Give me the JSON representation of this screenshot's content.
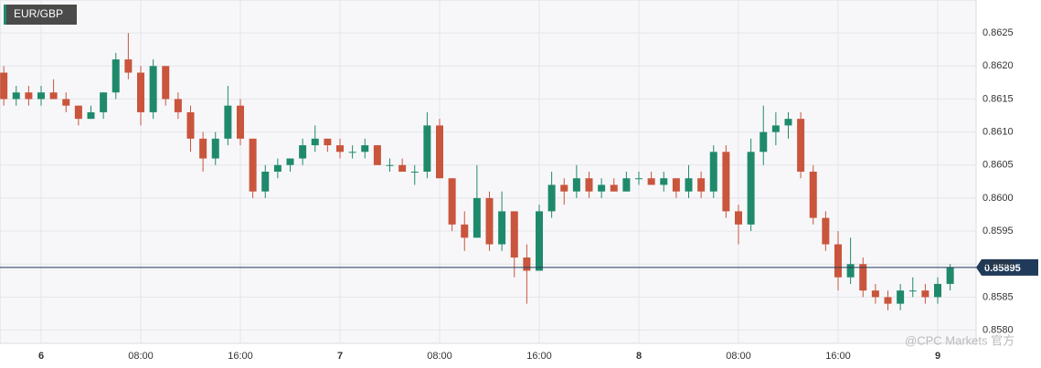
{
  "chart_data": {
    "type": "candlestick",
    "title": "EUR/GBP",
    "watermark": "@CPC Markets 官方",
    "categories": [
      null,
      null,
      null,
      "6",
      null,
      null,
      null,
      null,
      null,
      null,
      null,
      "08:00",
      null,
      null,
      null,
      null,
      null,
      null,
      null,
      "16:00",
      null,
      null,
      null,
      null,
      null,
      null,
      null,
      "7",
      null,
      null,
      null,
      null,
      null,
      null,
      null,
      "08:00",
      null,
      null,
      null,
      null,
      null,
      null,
      null,
      "16:00",
      null,
      null,
      null,
      null,
      null,
      null,
      null,
      "8",
      null,
      null,
      null,
      null,
      null,
      null,
      null,
      "08:00",
      null,
      null,
      null,
      null,
      null,
      null,
      null,
      "16:00",
      null,
      null,
      null,
      null,
      null,
      null,
      null,
      "9",
      null
    ],
    "open": [
      0.8619,
      0.8615,
      0.8616,
      0.8615,
      0.8616,
      0.8615,
      0.8614,
      0.8612,
      0.8613,
      0.8616,
      0.8621,
      0.8619,
      0.8613,
      0.862,
      0.8615,
      0.8613,
      0.8609,
      0.8606,
      0.8609,
      0.8614,
      0.8609,
      0.8601,
      0.8604,
      0.8605,
      0.8606,
      0.8608,
      0.8609,
      0.8608,
      0.8607,
      0.8607,
      0.8608,
      0.8605,
      0.8605,
      0.8604,
      0.8604,
      0.8611,
      0.8603,
      0.8596,
      0.8594,
      0.86,
      0.8593,
      0.8598,
      0.8591,
      0.8589,
      0.8598,
      0.8602,
      0.8601,
      0.8603,
      0.8601,
      0.8602,
      0.8601,
      0.8603,
      0.8603,
      0.8602,
      0.8603,
      0.8601,
      0.8603,
      0.8601,
      0.8607,
      0.8598,
      0.8596,
      0.8607,
      0.861,
      0.8611,
      0.8612,
      0.8604,
      0.8597,
      0.8593,
      0.8588,
      0.859,
      0.8586,
      0.8585,
      0.8584,
      0.8586,
      0.8586,
      0.8585,
      0.8587
    ],
    "high": [
      0.862,
      0.8617,
      0.8617,
      0.8617,
      0.8618,
      0.8616,
      0.8614,
      0.8614,
      0.8616,
      0.8622,
      0.8625,
      0.862,
      0.8621,
      0.862,
      0.8616,
      0.8614,
      0.861,
      0.861,
      0.8617,
      0.8615,
      0.8609,
      0.8605,
      0.8606,
      0.8606,
      0.8609,
      0.8611,
      0.8609,
      0.8609,
      0.8608,
      0.8609,
      0.8608,
      0.8606,
      0.8606,
      0.8605,
      0.8613,
      0.8612,
      0.8603,
      0.8598,
      0.8605,
      0.8601,
      0.8601,
      0.8598,
      0.8593,
      0.8599,
      0.8604,
      0.8603,
      0.8605,
      0.8604,
      0.8603,
      0.8603,
      0.8604,
      0.8604,
      0.8604,
      0.8604,
      0.8603,
      0.8605,
      0.8604,
      0.8608,
      0.8608,
      0.8599,
      0.8609,
      0.8614,
      0.8613,
      0.8613,
      0.8613,
      0.8605,
      0.8598,
      0.8595,
      0.8594,
      0.8591,
      0.8587,
      0.8586,
      0.8587,
      0.8588,
      0.8587,
      0.8588,
      0.859
    ],
    "low": [
      0.8614,
      0.8614,
      0.8614,
      0.8614,
      0.8615,
      0.8613,
      0.8611,
      0.8612,
      0.8612,
      0.8615,
      0.8618,
      0.8611,
      0.8612,
      0.8614,
      0.8612,
      0.8607,
      0.8604,
      0.8605,
      0.8608,
      0.8608,
      0.86,
      0.86,
      0.8603,
      0.8604,
      0.8605,
      0.8607,
      0.8607,
      0.8606,
      0.8606,
      0.8606,
      0.8605,
      0.8604,
      0.8604,
      0.8602,
      0.8603,
      0.8603,
      0.8595,
      0.8592,
      0.8594,
      0.8592,
      0.8592,
      0.8588,
      0.8584,
      0.8589,
      0.8597,
      0.8599,
      0.86,
      0.86,
      0.86,
      0.8601,
      0.8601,
      0.8602,
      0.8602,
      0.8601,
      0.86,
      0.86,
      0.86,
      0.86,
      0.8597,
      0.8593,
      0.8595,
      0.8605,
      0.8608,
      0.8609,
      0.8603,
      0.8596,
      0.8592,
      0.8586,
      0.8587,
      0.8585,
      0.8584,
      0.8583,
      0.8583,
      0.8585,
      0.8584,
      0.8584,
      0.8586
    ],
    "close": [
      0.8615,
      0.8616,
      0.8615,
      0.8616,
      0.8615,
      0.8614,
      0.8612,
      0.8613,
      0.8616,
      0.8621,
      0.8619,
      0.8613,
      0.862,
      0.8615,
      0.8613,
      0.8609,
      0.8606,
      0.8609,
      0.8614,
      0.8609,
      0.8601,
      0.8604,
      0.8605,
      0.8606,
      0.8608,
      0.8609,
      0.8608,
      0.8607,
      0.8607,
      0.8608,
      0.8605,
      0.8605,
      0.8604,
      0.8604,
      0.8611,
      0.8603,
      0.8596,
      0.8594,
      0.86,
      0.8593,
      0.8598,
      0.8591,
      0.8589,
      0.8598,
      0.8602,
      0.8601,
      0.8603,
      0.8601,
      0.8602,
      0.8601,
      0.8603,
      0.8603,
      0.8602,
      0.8603,
      0.8601,
      0.8603,
      0.8601,
      0.8607,
      0.8598,
      0.8596,
      0.8607,
      0.861,
      0.8611,
      0.8612,
      0.8604,
      0.8597,
      0.8593,
      0.8588,
      0.859,
      0.8586,
      0.8585,
      0.8584,
      0.8586,
      0.8586,
      0.8585,
      0.8587,
      0.85895
    ],
    "up_color": "#1f8a6b",
    "down_color": "#c9553c",
    "last_price": 0.85895,
    "last_price_color": "#203a5a",
    "ylim": [
      0.8578,
      0.863
    ],
    "yticks": [
      {
        "value": 0.858,
        "label": "0.8580"
      },
      0.8585,
      {
        "value": 0.859,
        "label": "0.8590"
      },
      0.8595,
      {
        "value": 0.86,
        "label": "0.8600"
      },
      0.8605,
      {
        "value": 0.861,
        "label": "0.8610"
      },
      0.8615,
      {
        "value": 0.862,
        "label": "0.8620"
      },
      0.8625
    ],
    "grid": true
  }
}
